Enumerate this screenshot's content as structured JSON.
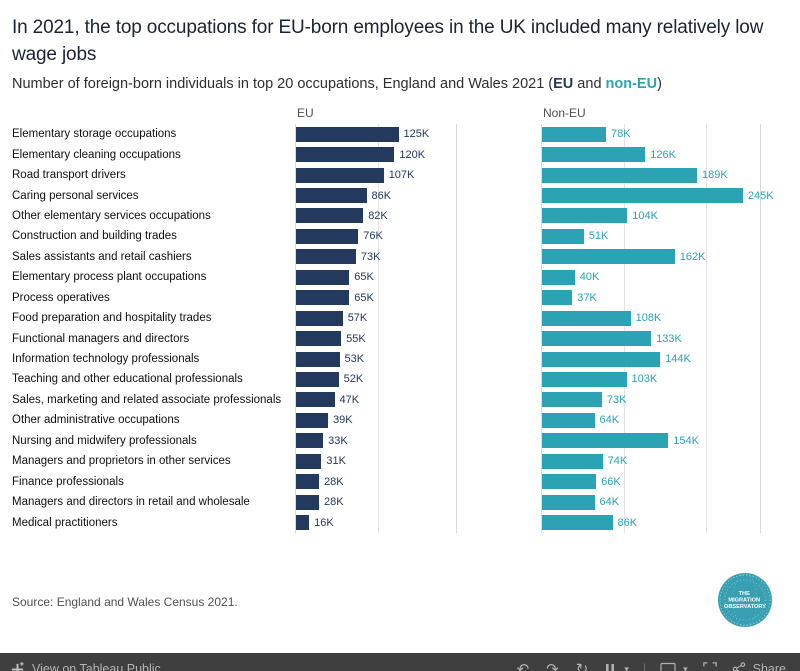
{
  "header": {
    "title": "In 2021, the top occupations for EU-born employees in the UK included many relatively low wage jobs",
    "subtitle_prefix": "Number of foreign-born individuals in top 20 occupations, England and Wales 2021 (",
    "subtitle_eu": "EU",
    "subtitle_and": " and ",
    "subtitle_noneu": "non-EU",
    "subtitle_suffix": ")"
  },
  "chart": {
    "eu_header": "EU",
    "noneu_header": "Non-EU"
  },
  "chart_data": {
    "type": "bar",
    "orientation": "horizontal",
    "unit": "thousands of individuals",
    "gridlines_k": [
      0,
      100,
      200
    ],
    "categories": [
      "Elementary storage occupations",
      "Elementary cleaning occupations",
      "Road transport drivers",
      "Caring personal services",
      "Other elementary services occupations",
      "Construction and building trades",
      "Sales assistants and retail cashiers",
      "Elementary process plant occupations",
      "Process operatives",
      "Food preparation and hospitality trades",
      "Functional managers and directors",
      "Information technology professionals",
      "Teaching and other educational professionals",
      "Sales, marketing and related associate professionals",
      "Other administrative occupations",
      "Nursing and midwifery professionals",
      "Managers and proprietors in other services",
      "Finance professionals",
      "Managers and directors in retail and wholesale",
      "Medical practitioners"
    ],
    "series": [
      {
        "name": "EU",
        "color": "#24395e",
        "values": [
          125,
          120,
          107,
          86,
          82,
          76,
          73,
          65,
          65,
          57,
          55,
          53,
          52,
          47,
          39,
          33,
          31,
          28,
          28,
          16
        ],
        "labels": [
          "125K",
          "120K",
          "107K",
          "86K",
          "82K",
          "76K",
          "73K",
          "65K",
          "65K",
          "57K",
          "55K",
          "53K",
          "52K",
          "47K",
          "39K",
          "33K",
          "31K",
          "28K",
          "28K",
          "16K"
        ]
      },
      {
        "name": "Non-EU",
        "color": "#2ba3b5",
        "values": [
          78,
          126,
          189,
          245,
          104,
          51,
          162,
          40,
          37,
          108,
          133,
          144,
          103,
          73,
          64,
          154,
          74,
          66,
          64,
          86
        ],
        "labels": [
          "78K",
          "126K",
          "189K",
          "245K",
          "104K",
          "51K",
          "162K",
          "40K",
          "37K",
          "108K",
          "133K",
          "144K",
          "103K",
          "73K",
          "64K",
          "154K",
          "74K",
          "66K",
          "64K",
          "86K"
        ]
      }
    ]
  },
  "source": "Source: England and Wales Census 2021.",
  "logo": {
    "line1": "THE",
    "line2": "MIGRATION",
    "line3": "OBSERVATORY"
  },
  "toolbar": {
    "view_label": "View on Tableau Public",
    "share_label": "Share"
  },
  "icons": {
    "undo": "↶",
    "redo": "↷",
    "refresh": "↻",
    "caret": "▾",
    "separator": "|"
  },
  "colors": {
    "eu": "#24395e",
    "noneu": "#2ba3b5",
    "toolbar_bg": "#3f3f3f"
  }
}
